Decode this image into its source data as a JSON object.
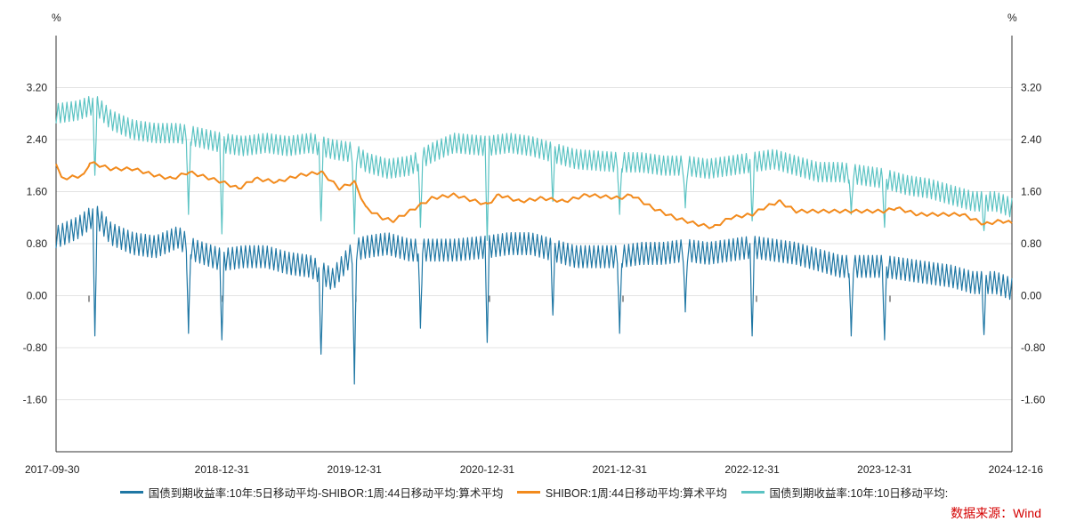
{
  "chart_data": {
    "type": "line",
    "y_unit_left": "%",
    "y_unit_right": "%",
    "ylim": [
      -2.4,
      4.0
    ],
    "y_ticks": [
      3.2,
      2.4,
      1.6,
      0.8,
      0.0,
      -0.8,
      -1.6
    ],
    "y_tick_labels": [
      "3.20",
      "2.40",
      "1.60",
      "0.80",
      "0.00",
      "-0.80",
      "-1.60"
    ],
    "x_range": [
      "2017-09-30",
      "2024-12-16"
    ],
    "x_ticks": [
      "2017-09-30",
      "2018-12-31",
      "2019-12-31",
      "2020-12-31",
      "2021-12-31",
      "2022-12-31",
      "2023-12-31",
      "2024-12-16"
    ],
    "grid": "horizontal",
    "legend_position": "bottom",
    "series": [
      {
        "name": "国债到期收益率:10年:5日移动平均-SHIBOR:1周:44日移动平均:算术平均",
        "color": "#1f77a4",
        "points": [
          [
            "2017-10-01",
            0.9
          ],
          [
            "2017-12-01",
            1.05
          ],
          [
            "2018-01-15",
            1.25
          ],
          [
            "2018-03-01",
            0.95
          ],
          [
            "2018-05-01",
            0.8
          ],
          [
            "2018-07-01",
            0.75
          ],
          [
            "2018-09-01",
            0.9
          ],
          [
            "2018-10-15",
            0.7
          ],
          [
            "2018-12-31",
            0.55
          ],
          [
            "2019-03-01",
            0.6
          ],
          [
            "2019-05-01",
            0.6
          ],
          [
            "2019-07-01",
            0.5
          ],
          [
            "2019-09-01",
            0.45
          ],
          [
            "2019-11-01",
            0.25
          ],
          [
            "2019-12-31",
            0.7
          ],
          [
            "2020-02-01",
            0.75
          ],
          [
            "2020-04-01",
            0.8
          ],
          [
            "2020-06-01",
            0.7
          ],
          [
            "2020-08-01",
            0.7
          ],
          [
            "2020-10-01",
            0.7
          ],
          [
            "2020-12-31",
            0.75
          ],
          [
            "2021-03-01",
            0.8
          ],
          [
            "2021-05-01",
            0.8
          ],
          [
            "2021-07-01",
            0.7
          ],
          [
            "2021-09-01",
            0.6
          ],
          [
            "2021-12-31",
            0.6
          ],
          [
            "2022-03-01",
            0.65
          ],
          [
            "2022-05-01",
            0.65
          ],
          [
            "2022-07-01",
            0.7
          ],
          [
            "2022-09-01",
            0.65
          ],
          [
            "2022-12-31",
            0.75
          ],
          [
            "2023-03-01",
            0.7
          ],
          [
            "2023-05-01",
            0.65
          ],
          [
            "2023-07-01",
            0.55
          ],
          [
            "2023-09-01",
            0.45
          ],
          [
            "2023-12-31",
            0.45
          ],
          [
            "2024-03-01",
            0.4
          ],
          [
            "2024-05-01",
            0.35
          ],
          [
            "2024-07-01",
            0.3
          ],
          [
            "2024-09-01",
            0.2
          ],
          [
            "2024-11-01",
            0.2
          ],
          [
            "2024-12-16",
            0.1
          ]
        ],
        "spikes": [
          [
            "2018-01-15",
            -0.62
          ],
          [
            "2018-09-30",
            -0.58
          ],
          [
            "2018-12-31",
            -0.68
          ],
          [
            "2019-09-30",
            -0.9
          ],
          [
            "2019-12-31",
            -1.36
          ],
          [
            "2020-06-30",
            -0.5
          ],
          [
            "2020-12-31",
            -0.72
          ],
          [
            "2021-06-30",
            -0.3
          ],
          [
            "2021-12-31",
            -0.58
          ],
          [
            "2022-06-30",
            -0.25
          ],
          [
            "2022-12-31",
            -0.62
          ],
          [
            "2023-09-30",
            -0.62
          ],
          [
            "2023-12-31",
            -0.68
          ],
          [
            "2024-09-30",
            -0.6
          ]
        ]
      },
      {
        "name": "SHIBOR:1周:44日移动平均:算术平均",
        "color": "#f28a1c",
        "points": [
          [
            "2017-09-30",
            2.05
          ],
          [
            "2017-10-15",
            1.8
          ],
          [
            "2017-12-15",
            1.85
          ],
          [
            "2018-01-01",
            2.05
          ],
          [
            "2018-03-01",
            1.95
          ],
          [
            "2018-05-01",
            1.95
          ],
          [
            "2018-07-01",
            1.85
          ],
          [
            "2018-08-15",
            1.8
          ],
          [
            "2018-10-01",
            1.9
          ],
          [
            "2018-12-31",
            1.75
          ],
          [
            "2019-02-15",
            1.65
          ],
          [
            "2019-04-01",
            1.8
          ],
          [
            "2019-06-01",
            1.75
          ],
          [
            "2019-08-01",
            1.85
          ],
          [
            "2019-10-01",
            1.9
          ],
          [
            "2019-11-20",
            1.65
          ],
          [
            "2019-12-31",
            1.75
          ],
          [
            "2020-02-01",
            1.35
          ],
          [
            "2020-03-15",
            1.2
          ],
          [
            "2020-04-15",
            1.15
          ],
          [
            "2020-06-01",
            1.3
          ],
          [
            "2020-08-01",
            1.5
          ],
          [
            "2020-10-01",
            1.55
          ],
          [
            "2020-12-31",
            1.4
          ],
          [
            "2021-02-01",
            1.55
          ],
          [
            "2021-04-01",
            1.45
          ],
          [
            "2021-06-01",
            1.5
          ],
          [
            "2021-08-01",
            1.45
          ],
          [
            "2021-10-01",
            1.55
          ],
          [
            "2021-12-31",
            1.5
          ],
          [
            "2022-02-01",
            1.55
          ],
          [
            "2022-04-01",
            1.35
          ],
          [
            "2022-06-01",
            1.2
          ],
          [
            "2022-08-01",
            1.1
          ],
          [
            "2022-09-15",
            1.05
          ],
          [
            "2022-11-01",
            1.2
          ],
          [
            "2022-12-31",
            1.25
          ],
          [
            "2023-02-01",
            1.35
          ],
          [
            "2023-03-15",
            1.45
          ],
          [
            "2023-05-01",
            1.3
          ],
          [
            "2023-07-01",
            1.3
          ],
          [
            "2023-09-01",
            1.3
          ],
          [
            "2023-11-01",
            1.3
          ],
          [
            "2023-12-31",
            1.3
          ],
          [
            "2024-02-01",
            1.35
          ],
          [
            "2024-04-01",
            1.25
          ],
          [
            "2024-06-01",
            1.25
          ],
          [
            "2024-08-01",
            1.25
          ],
          [
            "2024-10-01",
            1.1
          ],
          [
            "2024-11-15",
            1.15
          ],
          [
            "2024-12-16",
            1.12
          ]
        ]
      },
      {
        "name": "国债到期收益率:10年:10日移动平均:",
        "color": "#5bc3c3",
        "points": [
          [
            "2017-09-30",
            2.8
          ],
          [
            "2017-12-01",
            2.85
          ],
          [
            "2018-01-15",
            2.95
          ],
          [
            "2018-03-01",
            2.7
          ],
          [
            "2018-05-01",
            2.55
          ],
          [
            "2018-07-01",
            2.5
          ],
          [
            "2018-09-01",
            2.5
          ],
          [
            "2018-10-15",
            2.45
          ],
          [
            "2018-12-31",
            2.35
          ],
          [
            "2019-03-01",
            2.3
          ],
          [
            "2019-05-01",
            2.35
          ],
          [
            "2019-07-01",
            2.3
          ],
          [
            "2019-09-01",
            2.35
          ],
          [
            "2019-11-01",
            2.25
          ],
          [
            "2019-12-31",
            2.2
          ],
          [
            "2020-02-01",
            2.05
          ],
          [
            "2020-04-01",
            1.95
          ],
          [
            "2020-06-01",
            2.0
          ],
          [
            "2020-08-01",
            2.2
          ],
          [
            "2020-10-01",
            2.35
          ],
          [
            "2020-12-31",
            2.3
          ],
          [
            "2021-03-01",
            2.35
          ],
          [
            "2021-05-01",
            2.3
          ],
          [
            "2021-07-01",
            2.2
          ],
          [
            "2021-09-01",
            2.1
          ],
          [
            "2021-12-31",
            2.05
          ],
          [
            "2022-03-01",
            2.05
          ],
          [
            "2022-05-01",
            2.0
          ],
          [
            "2022-07-01",
            2.0
          ],
          [
            "2022-09-01",
            1.95
          ],
          [
            "2022-12-31",
            2.05
          ],
          [
            "2023-03-01",
            2.1
          ],
          [
            "2023-05-01",
            2.0
          ],
          [
            "2023-07-01",
            1.9
          ],
          [
            "2023-09-01",
            1.9
          ],
          [
            "2023-12-31",
            1.8
          ],
          [
            "2024-03-01",
            1.7
          ],
          [
            "2024-05-01",
            1.65
          ],
          [
            "2024-07-01",
            1.55
          ],
          [
            "2024-09-01",
            1.45
          ],
          [
            "2024-11-01",
            1.45
          ],
          [
            "2024-12-16",
            1.35
          ]
        ],
        "spikes": [
          [
            "2018-01-15",
            1.85
          ],
          [
            "2018-09-30",
            1.25
          ],
          [
            "2018-12-31",
            0.95
          ],
          [
            "2019-09-30",
            1.15
          ],
          [
            "2019-12-31",
            0.95
          ],
          [
            "2020-06-30",
            1.05
          ],
          [
            "2020-12-31",
            0.85
          ],
          [
            "2021-06-30",
            1.45
          ],
          [
            "2021-12-31",
            1.25
          ],
          [
            "2022-06-30",
            1.35
          ],
          [
            "2022-12-31",
            1.15
          ],
          [
            "2023-09-30",
            1.25
          ],
          [
            "2023-12-31",
            1.05
          ],
          [
            "2024-09-30",
            1.0
          ]
        ]
      }
    ]
  },
  "source_text": "数据来源：Wind"
}
